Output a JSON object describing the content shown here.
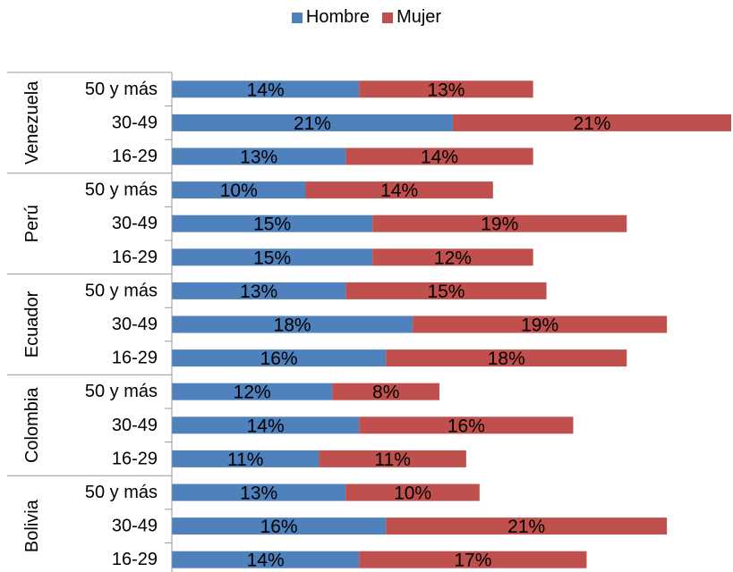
{
  "chart_data": {
    "type": "bar",
    "orientation": "horizontal",
    "stacked": true,
    "legend_position": "top",
    "grid": false,
    "title": "",
    "xlabel": "",
    "ylabel": "",
    "series": [
      {
        "name": "Hombre",
        "color": "#4F81BD"
      },
      {
        "name": "Mujer",
        "color": "#C0504D"
      }
    ],
    "groups": [
      {
        "country": "Venezuela",
        "rows": [
          {
            "age": "50 y más",
            "hombre": 14,
            "mujer": 13
          },
          {
            "age": "30-49",
            "hombre": 21,
            "mujer": 21
          },
          {
            "age": "16-29",
            "hombre": 13,
            "mujer": 14
          }
        ]
      },
      {
        "country": "Perú",
        "rows": [
          {
            "age": "50 y más",
            "hombre": 10,
            "mujer": 14
          },
          {
            "age": "30-49",
            "hombre": 15,
            "mujer": 19
          },
          {
            "age": "16-29",
            "hombre": 15,
            "mujer": 12
          }
        ]
      },
      {
        "country": "Ecuador",
        "rows": [
          {
            "age": "50 y más",
            "hombre": 13,
            "mujer": 15
          },
          {
            "age": "30-49",
            "hombre": 18,
            "mujer": 19
          },
          {
            "age": "16-29",
            "hombre": 16,
            "mujer": 18
          }
        ]
      },
      {
        "country": "Colombia",
        "rows": [
          {
            "age": "50 y más",
            "hombre": 12,
            "mujer": 8
          },
          {
            "age": "30-49",
            "hombre": 14,
            "mujer": 16
          },
          {
            "age": "16-29",
            "hombre": 11,
            "mujer": 11
          }
        ]
      },
      {
        "country": "Bolivia",
        "rows": [
          {
            "age": "50 y más",
            "hombre": 13,
            "mujer": 10
          },
          {
            "age": "30-49",
            "hombre": 16,
            "mujer": 21
          },
          {
            "age": "16-29",
            "hombre": 14,
            "mujer": 17
          }
        ]
      }
    ]
  }
}
